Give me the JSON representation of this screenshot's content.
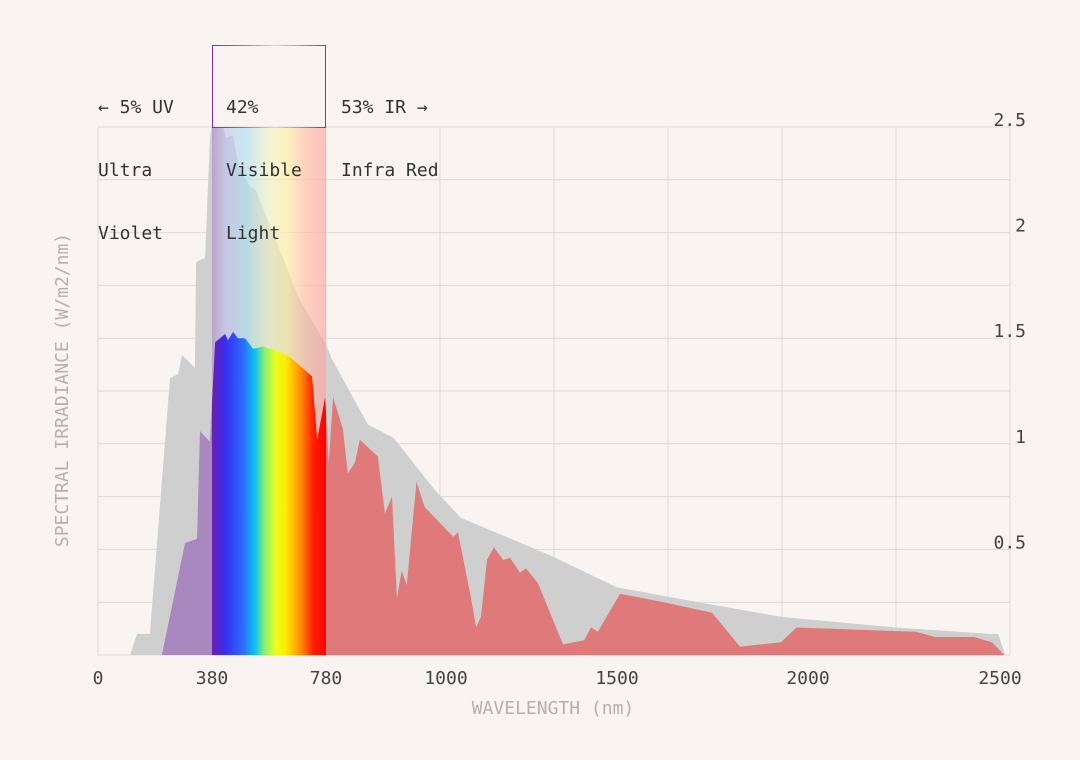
{
  "regions": {
    "uv": {
      "line1": "← 5% UV",
      "line2": "Ultra",
      "line3": "Violet"
    },
    "visible": {
      "line1": "42%",
      "line2": "Visible",
      "line3": "Light"
    },
    "ir": {
      "line1": "53% IR →",
      "line2": "Infra Red"
    }
  },
  "colors": {
    "background": "#f9f3f1",
    "grey_series": "#cfcfcf",
    "uv": "#a988c0",
    "ir": "#e07a7a",
    "grid": "#dedad9"
  },
  "chart_data": {
    "type": "area",
    "xlabel": "WAVELENGTH (nm)",
    "ylabel": "SPECTRAL IRRADIANCE (W/m2/nm)",
    "xlim": [
      0,
      2550
    ],
    "ylim": [
      0,
      2.5
    ],
    "x_ticks": [
      "0",
      "380",
      "780",
      "1000",
      "1500",
      "2000",
      "2500"
    ],
    "x_tick_values": [
      0,
      380,
      780,
      1000,
      1500,
      2000,
      2500
    ],
    "y_ticks": [
      "0.5",
      "1",
      "1.5",
      "2",
      "2.5"
    ],
    "y_tick_values": [
      0.5,
      1,
      1.5,
      2,
      2.5
    ],
    "grid": true,
    "series": [
      {
        "color": "#cfcfcf",
        "points": [
          [
            107,
            0
          ],
          [
            130,
            0.1
          ],
          [
            173,
            0.1
          ],
          [
            240,
            1.31
          ],
          [
            267,
            1.33
          ],
          [
            280,
            1.42
          ],
          [
            323,
            1.36
          ],
          [
            327,
            1.86
          ],
          [
            357,
            1.88
          ],
          [
            373,
            2.44
          ],
          [
            391,
            2.65
          ],
          [
            428,
            2.45
          ],
          [
            453,
            2.46
          ],
          [
            477,
            2.3
          ],
          [
            513,
            2.22
          ],
          [
            534,
            2.2
          ],
          [
            688,
            1.68
          ],
          [
            780,
            1.47
          ],
          [
            791,
            1.4
          ],
          [
            857,
            1.09
          ],
          [
            903,
            1.03
          ],
          [
            980,
            0.78
          ],
          [
            1043,
            0.65
          ],
          [
            1307,
            0.47
          ],
          [
            1500,
            0.32
          ],
          [
            1743,
            0.24
          ],
          [
            1932,
            0.18
          ],
          [
            2229,
            0.13
          ],
          [
            2474,
            0.1
          ],
          [
            2495,
            0.1
          ],
          [
            2526,
            0
          ]
        ]
      },
      {
        "color": "spectrum",
        "points": [
          [
            213,
            0
          ],
          [
            290,
            0.53
          ],
          [
            330,
            0.55
          ],
          [
            340,
            1.06
          ],
          [
            373,
            1.01
          ],
          [
            391,
            1.48
          ],
          [
            426,
            1.52
          ],
          [
            436,
            1.49
          ],
          [
            454,
            1.53
          ],
          [
            471,
            1.5
          ],
          [
            496,
            1.5
          ],
          [
            524,
            1.45
          ],
          [
            559,
            1.46
          ],
          [
            608,
            1.44
          ],
          [
            654,
            1.41
          ],
          [
            731,
            1.32
          ],
          [
            749,
            1.02
          ],
          [
            777,
            1.22
          ],
          [
            785,
            0.91
          ],
          [
            793,
            1.22
          ],
          [
            811,
            1.07
          ],
          [
            820,
            0.86
          ],
          [
            833,
            0.91
          ],
          [
            842,
            1.02
          ],
          [
            875,
            0.94
          ],
          [
            888,
            0.67
          ],
          [
            901,
            0.75
          ],
          [
            910,
            0.27
          ],
          [
            919,
            0.4
          ],
          [
            928,
            0.33
          ],
          [
            946,
            0.82
          ],
          [
            961,
            0.7
          ],
          [
            1021,
            0.56
          ],
          [
            1035,
            0.58
          ],
          [
            1073,
            0.27
          ],
          [
            1088,
            0.13
          ],
          [
            1102,
            0.18
          ],
          [
            1120,
            0.45
          ],
          [
            1140,
            0.51
          ],
          [
            1167,
            0.45
          ],
          [
            1187,
            0.46
          ],
          [
            1216,
            0.39
          ],
          [
            1234,
            0.41
          ],
          [
            1269,
            0.34
          ],
          [
            1342,
            0.05
          ],
          [
            1404,
            0.07
          ],
          [
            1424,
            0.13
          ],
          [
            1444,
            0.11
          ],
          [
            1508,
            0.29
          ],
          [
            1623,
            0.25
          ],
          [
            1749,
            0.2
          ],
          [
            1822,
            0.04
          ],
          [
            1929,
            0.06
          ],
          [
            1970,
            0.13
          ],
          [
            2281,
            0.11
          ],
          [
            2331,
            0.085
          ],
          [
            2432,
            0.085
          ],
          [
            2479,
            0.06
          ],
          [
            2521,
            0
          ]
        ]
      }
    ]
  }
}
